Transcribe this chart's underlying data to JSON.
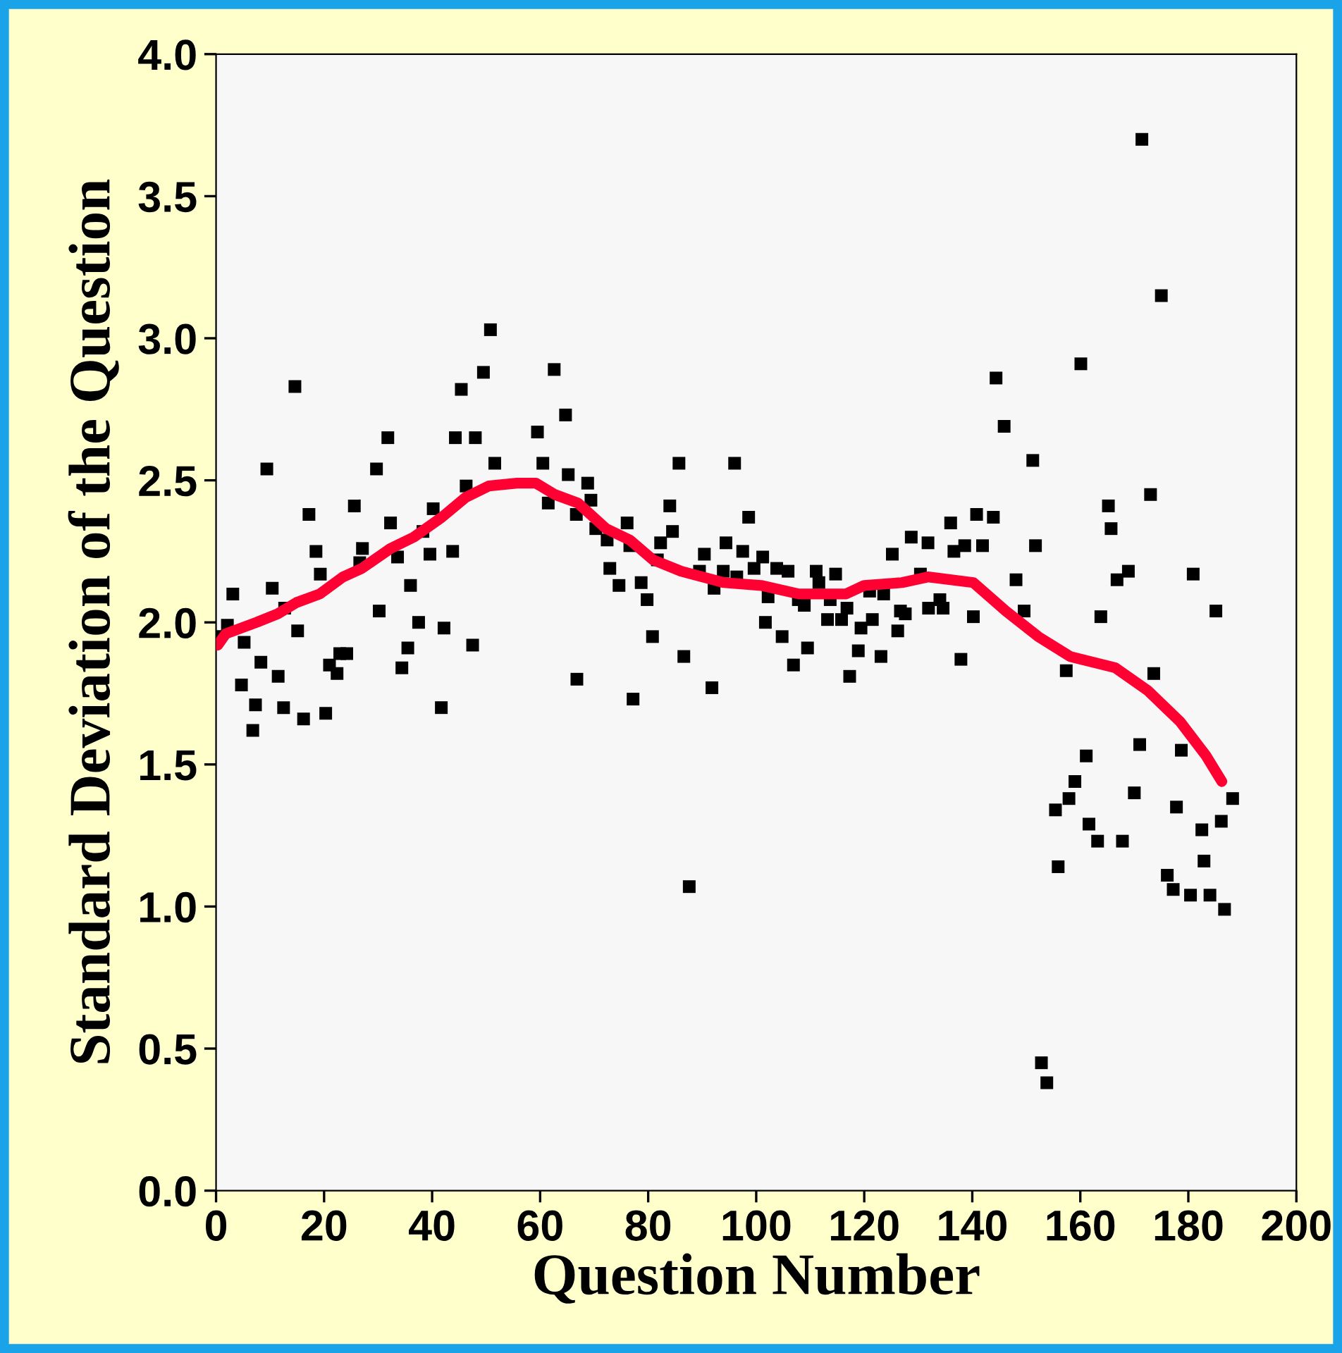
{
  "chart_data": {
    "type": "scatter",
    "xlabel": "Question Number",
    "ylabel": "Standard Deviation of the Question",
    "xlim": [
      0,
      200
    ],
    "xticks": [
      0,
      20,
      40,
      60,
      80,
      100,
      120,
      140,
      160,
      180,
      200
    ],
    "ylim": [
      0,
      4.0
    ],
    "yticks": [
      {
        "value": 0,
        "label": "0.0"
      },
      0.5,
      {
        "value": 1,
        "label": "1.0"
      },
      1.5,
      {
        "value": 2,
        "label": "2.0"
      },
      2.5,
      {
        "value": 3,
        "label": "3.0"
      },
      3.5,
      {
        "value": 4,
        "label": "4.0"
      }
    ],
    "grid": false,
    "legend": false,
    "series": [
      {
        "type": "scatter",
        "marker": "square",
        "color": "#000000",
        "x": [
          0.5,
          2.1,
          3.1,
          4.7,
          5.2,
          6.8,
          7.3,
          8.3,
          9.4,
          10.4,
          11.5,
          12.5,
          12.7,
          14.6,
          15.1,
          16.2,
          17.2,
          18.5,
          19.3,
          20.3,
          21,
          22.4,
          22.9,
          24.2,
          25.6,
          26.6,
          27.1,
          29.7,
          30.2,
          31.8,
          32.3,
          33.6,
          34.4,
          35.5,
          36,
          37.5,
          38.3,
          39.6,
          40.2,
          41.7,
          42.2,
          43.8,
          44.3,
          45.4,
          46.3,
          47.5,
          48,
          49.5,
          50.8,
          51.6,
          59.5,
          60.5,
          61.5,
          62.6,
          64.7,
          65.2,
          66.7,
          66.8,
          68.8,
          69.4,
          70.3,
          72.4,
          72.9,
          74.6,
          76.1,
          76.6,
          77.2,
          78.7,
          79.8,
          80.8,
          81.7,
          82.3,
          84,
          84.5,
          85.7,
          86.6,
          87.6,
          89.5,
          90.4,
          91.8,
          92.2,
          93.9,
          94.4,
          96,
          96.4,
          97.5,
          98.6,
          99.6,
          101.2,
          101.7,
          102.2,
          103.8,
          104.8,
          105.9,
          106.9,
          107.8,
          108.9,
          109.5,
          111.1,
          111.6,
          113.2,
          113.7,
          114.7,
          115.8,
          116.8,
          117.3,
          118.9,
          119.4,
          121,
          121.5,
          123.1,
          123.6,
          125.2,
          126.2,
          126.7,
          127.6,
          128.7,
          130.4,
          131.8,
          131.9,
          134,
          134.6,
          136,
          136.6,
          137.9,
          138.6,
          140.2,
          140.8,
          141.9,
          143.9,
          144.4,
          145.9,
          148.1,
          149.6,
          151.2,
          151.7,
          152.8,
          153.8,
          155.4,
          155.9,
          157.4,
          157.9,
          159,
          160.1,
          161.1,
          161.6,
          163.2,
          163.8,
          165.2,
          165.7,
          166.8,
          167.8,
          168.9,
          170,
          171,
          171.4,
          173,
          173.6,
          175,
          176.1,
          177.2,
          177.8,
          178.7,
          180.4,
          180.9,
          182.5,
          182.9,
          184,
          185.1,
          186.1,
          186.7,
          188.2
        ],
        "values": [
          1.95,
          1.99,
          2.1,
          1.78,
          1.93,
          1.62,
          1.71,
          1.86,
          2.54,
          2.12,
          1.81,
          1.7,
          2.05,
          2.83,
          1.97,
          1.66,
          2.38,
          2.25,
          2.17,
          1.68,
          1.85,
          1.82,
          1.89,
          1.89,
          2.41,
          2.21,
          2.26,
          2.54,
          2.04,
          2.65,
          2.35,
          2.23,
          1.84,
          1.91,
          2.13,
          2,
          2.32,
          2.24,
          2.4,
          1.7,
          1.98,
          2.25,
          2.65,
          2.82,
          2.48,
          1.92,
          2.65,
          2.88,
          3.03,
          2.56,
          2.67,
          2.56,
          2.42,
          2.89,
          2.73,
          2.52,
          2.38,
          1.8,
          2.49,
          2.43,
          2.33,
          2.29,
          2.19,
          2.13,
          2.35,
          2.27,
          1.73,
          2.14,
          2.08,
          1.95,
          2.22,
          2.28,
          2.41,
          2.32,
          2.56,
          1.88,
          1.07,
          2.18,
          2.24,
          1.77,
          2.12,
          2.18,
          2.28,
          2.56,
          2.16,
          2.25,
          2.37,
          2.19,
          2.23,
          2,
          2.09,
          2.19,
          1.95,
          2.18,
          1.85,
          2.08,
          2.06,
          1.91,
          2.18,
          2.14,
          2.01,
          2.08,
          2.17,
          2.01,
          2.05,
          1.81,
          1.9,
          1.98,
          2.11,
          2.01,
          1.88,
          2.1,
          2.24,
          1.97,
          2.04,
          2.03,
          2.3,
          2.17,
          2.28,
          2.05,
          2.08,
          2.05,
          2.35,
          2.25,
          1.87,
          2.27,
          2.02,
          2.38,
          2.27,
          2.37,
          2.86,
          2.69,
          2.15,
          2.04,
          2.57,
          2.27,
          0.45,
          0.38,
          1.34,
          1.14,
          1.83,
          1.38,
          1.44,
          2.91,
          1.53,
          1.29,
          1.23,
          2.02,
          2.41,
          2.33,
          2.15,
          1.23,
          2.18,
          1.4,
          1.57,
          3.7,
          2.45,
          1.82,
          3.15,
          1.11,
          1.06,
          1.35,
          1.55,
          1.04,
          2.17,
          1.27,
          1.16,
          1.04,
          2.04,
          1.3,
          0.99,
          1.38
        ]
      },
      {
        "type": "line",
        "marker": "none",
        "line_style": "solid",
        "color": "#ff0033",
        "x": [
          0.3,
          1.8,
          7.5,
          11.4,
          14.9,
          19.2,
          23.5,
          27.0,
          32.3,
          36.6,
          41.8,
          46.2,
          50.5,
          55.7,
          59.2,
          62.7,
          67.0,
          72.2,
          76.6,
          80.9,
          86.1,
          94.0,
          100.9,
          107.9,
          116.6,
          120.0,
          127.0,
          131.8,
          140.2,
          146.2,
          152.2,
          158.1,
          166.5,
          172.5,
          178.5,
          183.3,
          186.2
        ],
        "values": [
          1.92,
          1.96,
          2.0,
          2.03,
          2.07,
          2.1,
          2.16,
          2.19,
          2.26,
          2.3,
          2.37,
          2.44,
          2.48,
          2.49,
          2.49,
          2.45,
          2.42,
          2.33,
          2.29,
          2.22,
          2.18,
          2.14,
          2.13,
          2.1,
          2.1,
          2.13,
          2.14,
          2.16,
          2.14,
          2.04,
          1.95,
          1.88,
          1.84,
          1.76,
          1.65,
          1.53,
          1.44
        ]
      }
    ]
  }
}
